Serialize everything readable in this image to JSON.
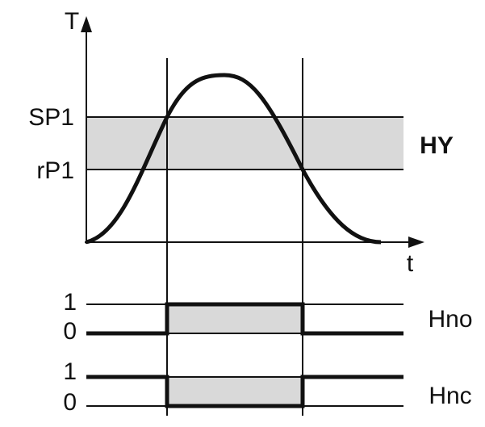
{
  "diagram": {
    "axis_y_label": "T",
    "axis_x_label": "t",
    "levels": {
      "upper": "SP1",
      "lower": "rP1",
      "band": "HY"
    },
    "outputs": [
      {
        "name": "Hno",
        "high": "1",
        "low": "0"
      },
      {
        "name": "Hnc",
        "high": "1",
        "low": "0"
      }
    ]
  }
}
